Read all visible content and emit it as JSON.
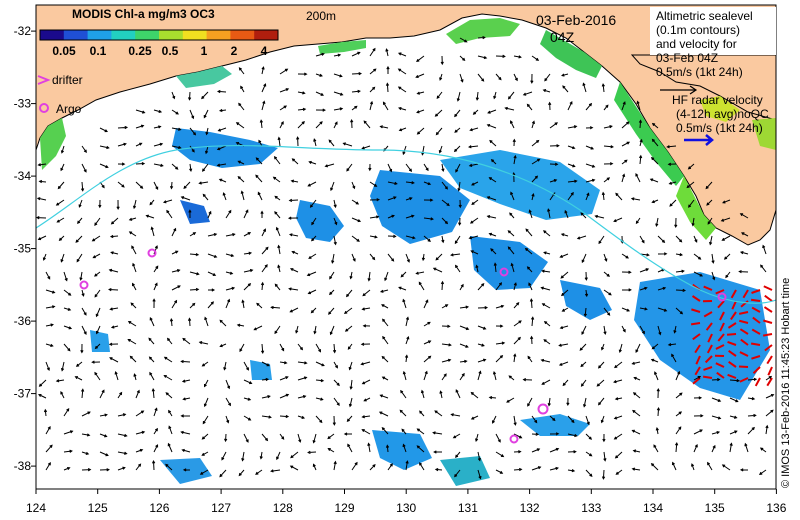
{
  "map": {
    "colorbar_title": "MODIS Chl-a mg/m3 OC3",
    "colorbar_ticks": [
      "0.05",
      "0.1",
      "0.25",
      "0.5",
      "1",
      "2",
      "4"
    ],
    "colorbar_colors": [
      "#1a0a8c",
      "#1f4fd6",
      "#1fa0e8",
      "#22d0c0",
      "#3ed46a",
      "#a8de2e",
      "#f0e020",
      "#f5a020",
      "#e85a14",
      "#b01e0e"
    ],
    "isobath_label": "200m",
    "date": "03-Feb-2016",
    "time": "04Z",
    "drifter_legend": "drifter",
    "argo_legend": "Argo",
    "altimetry_text": [
      "Altimetric sealevel",
      "(0.1m contours)",
      "and velocity for",
      "03-Feb 04Z",
      "0.5m/s (1kt 24h)"
    ],
    "hf_text": [
      "HF radar velocity",
      "(4-12h avg)noQC",
      "0.5m/s (1kt 24h)"
    ],
    "credit": "© IMOS 13-Feb-2016 11:45:23 Hobart time",
    "lon_ticks": [
      "124",
      "125",
      "126",
      "127",
      "128",
      "129",
      "130",
      "131",
      "132",
      "133",
      "134",
      "135",
      "136"
    ],
    "lat_ticks": [
      "-32",
      "-33",
      "-34",
      "-35",
      "-36",
      "-37",
      "-38"
    ],
    "land_color": "#fac9a0",
    "drifter_color": "#e040e0",
    "argo_color": "#e040e0",
    "hf_arrow_color": "#1010e0",
    "hf_vector_color": "#e00000"
  }
}
